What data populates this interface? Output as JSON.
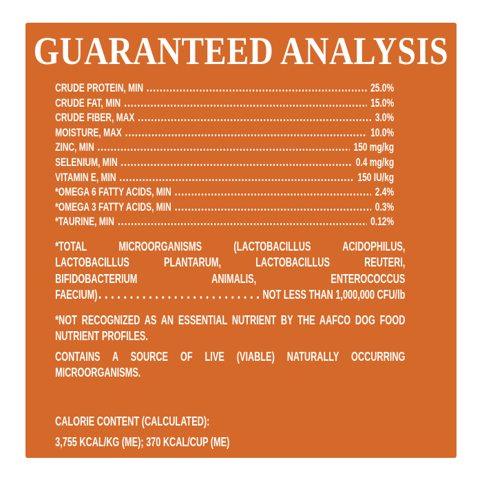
{
  "title": "GUARANTEED ANALYSIS",
  "colors": {
    "panel_background": "#d5692a",
    "page_background": "#ffffff",
    "text": "#ffffff"
  },
  "analysis_rows": [
    {
      "label": "CRUDE PROTEIN, MIN",
      "value": "25.0%"
    },
    {
      "label": "CRUDE FAT, MIN",
      "value": "15.0%"
    },
    {
      "label": "CRUDE FIBER, MAX",
      "value": "3.0%"
    },
    {
      "label": "MOISTURE, MAX",
      "value": "10.0%"
    },
    {
      "label": "ZINC, MIN",
      "value": "150 mg/kg"
    },
    {
      "label": "SELENIUM, MIN",
      "value": "0.4 mg/kg"
    },
    {
      "label": "VITAMIN E, MIN",
      "value": "150 IU/kg"
    },
    {
      "label": "*OMEGA 6 FATTY ACIDS, MIN",
      "value": "2.4%"
    },
    {
      "label": "*OMEGA 3 FATTY ACIDS, MIN",
      "value": "0.3%"
    },
    {
      "label": "*TAURINE, MIN",
      "value": "0.12%"
    }
  ],
  "microorganisms": {
    "lines": [
      "*TOTAL MICROORGANISMS (LACTOBACILLUS ACIDOPHILUS,",
      "LACTOBACILLUS PLANTARUM, LACTOBACILLUS REUTERI,",
      "BIFIDOBACTERIUM ANIMALIS, ENTEROCOCCUS"
    ],
    "leader_left": "FAECIUM)",
    "leader_right": "NOT LESS THAN 1,000,000 CFU/lb"
  },
  "footnotes": [
    "*NOT RECOGNIZED AS AN ESSENTIAL NUTRIENT BY THE AAFCO DOG FOOD NUTRIENT PROFILES.",
    "CONTAINS A SOURCE OF LIVE (VIABLE) NATURALLY OCCURRING MICROORGANISMS."
  ],
  "calorie_content": {
    "heading": "CALORIE CONTENT (CALCULATED):",
    "values": "3,755 KCAL/KG (ME); 370 KCAL/CUP (ME)"
  }
}
